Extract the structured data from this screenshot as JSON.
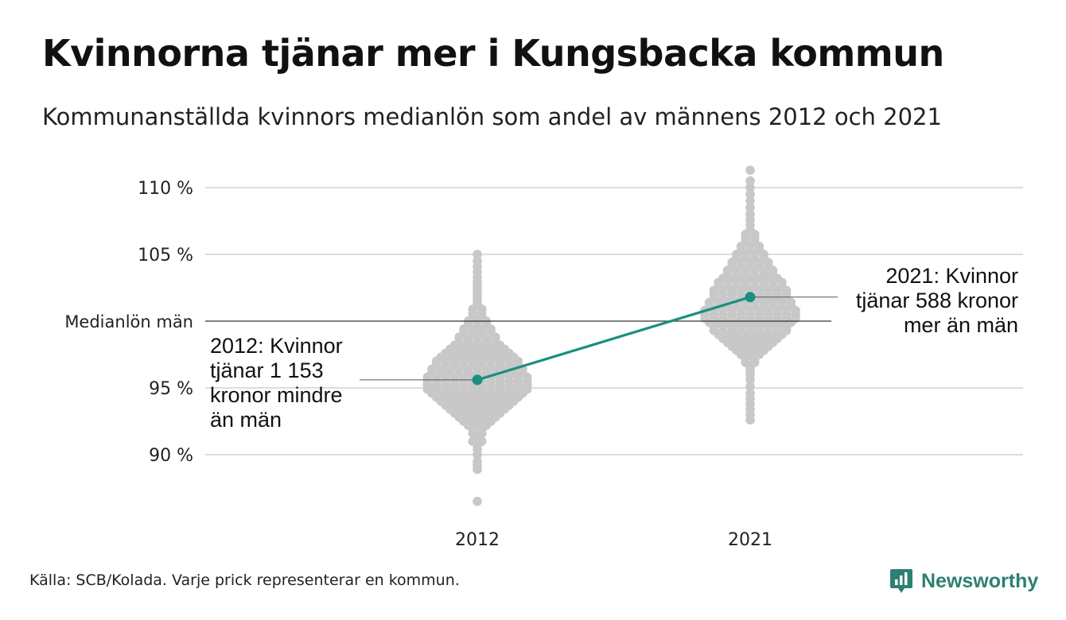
{
  "title": "Kvinnorna tjänar mer i Kungsbacka kommun",
  "subtitle": "Kommunanställda kvinnors medianlön som andel av männens 2012 och 2021",
  "source": "Källa: SCB/Kolada. Varje prick representerar en kommun.",
  "brand": {
    "name": "Newsworthy"
  },
  "chart_data": {
    "type": "scatter",
    "subtype": "beeswarm",
    "categories": [
      "2012",
      "2021"
    ],
    "y_ticks": [
      {
        "value": 90,
        "label": "90 %"
      },
      {
        "value": 95,
        "label": "95 %"
      },
      {
        "value": 100,
        "label": "Medianlön män"
      },
      {
        "value": 105,
        "label": "105 %"
      },
      {
        "value": 110,
        "label": "110 %"
      }
    ],
    "ylim": [
      85.5,
      112
    ],
    "reference_line": {
      "value": 100,
      "label": "Medianlön män"
    },
    "grid": true,
    "highlight": {
      "color": "#1a8f80",
      "points": [
        {
          "x": "2012",
          "y": 95.6
        },
        {
          "x": "2021",
          "y": 101.8
        }
      ]
    },
    "annotations": [
      {
        "x": "2012",
        "lines": [
          "2012: Kvinnor",
          "tjänar 1 153",
          "kronor mindre",
          "än män"
        ]
      },
      {
        "x": "2021",
        "lines": [
          "2021: Kvinnor",
          "tjänar 588 kronor",
          "mer än män"
        ]
      }
    ],
    "dot_color": "#c8c8c8",
    "series": [
      {
        "category": "2012",
        "values": [
          86.5,
          88.9,
          89.2,
          89.5,
          90.0,
          90.4,
          90.7,
          91.0,
          91.0,
          91.3,
          91.6,
          91.6,
          91.9,
          91.9,
          92.2,
          92.2,
          92.2,
          92.5,
          92.5,
          92.5,
          92.5,
          92.8,
          92.8,
          92.8,
          92.8,
          92.8,
          93.1,
          93.1,
          93.1,
          93.1,
          93.1,
          93.1,
          93.4,
          93.4,
          93.4,
          93.4,
          93.4,
          93.4,
          93.4,
          93.7,
          93.7,
          93.7,
          93.7,
          93.7,
          93.7,
          93.7,
          93.7,
          94.0,
          94.0,
          94.0,
          94.0,
          94.0,
          94.0,
          94.0,
          94.0,
          94.0,
          94.3,
          94.3,
          94.3,
          94.3,
          94.3,
          94.3,
          94.3,
          94.3,
          94.3,
          94.3,
          94.6,
          94.6,
          94.6,
          94.6,
          94.6,
          94.6,
          94.6,
          94.6,
          94.6,
          94.6,
          94.6,
          94.9,
          94.9,
          94.9,
          94.9,
          94.9,
          94.9,
          94.9,
          94.9,
          94.9,
          94.9,
          94.9,
          94.9,
          95.2,
          95.2,
          95.2,
          95.2,
          95.2,
          95.2,
          95.2,
          95.2,
          95.2,
          95.2,
          95.2,
          95.2,
          95.5,
          95.5,
          95.5,
          95.5,
          95.5,
          95.5,
          95.5,
          95.5,
          95.5,
          95.5,
          95.5,
          95.5,
          95.8,
          95.8,
          95.8,
          95.8,
          95.8,
          95.8,
          95.8,
          95.8,
          95.8,
          95.8,
          95.8,
          95.8,
          96.1,
          96.1,
          96.1,
          96.1,
          96.1,
          96.1,
          96.1,
          96.1,
          96.1,
          96.1,
          96.1,
          96.4,
          96.4,
          96.4,
          96.4,
          96.4,
          96.4,
          96.4,
          96.4,
          96.4,
          96.4,
          96.4,
          96.7,
          96.7,
          96.7,
          96.7,
          96.7,
          96.7,
          96.7,
          96.7,
          96.7,
          96.7,
          97.0,
          97.0,
          97.0,
          97.0,
          97.0,
          97.0,
          97.0,
          97.0,
          97.0,
          97.0,
          97.3,
          97.3,
          97.3,
          97.3,
          97.3,
          97.3,
          97.3,
          97.3,
          97.3,
          97.6,
          97.6,
          97.6,
          97.6,
          97.6,
          97.6,
          97.6,
          97.6,
          97.9,
          97.9,
          97.9,
          97.9,
          97.9,
          97.9,
          97.9,
          98.2,
          98.2,
          98.2,
          98.2,
          98.2,
          98.2,
          98.5,
          98.5,
          98.5,
          98.5,
          98.5,
          98.8,
          98.8,
          98.8,
          98.8,
          98.8,
          99.1,
          99.1,
          99.1,
          99.1,
          99.4,
          99.4,
          99.4,
          99.4,
          99.7,
          99.7,
          99.7,
          100.0,
          100.0,
          100.0,
          100.3,
          100.3,
          100.6,
          100.6,
          100.9,
          100.9,
          101.2,
          101.5,
          101.8,
          102.1,
          102.4,
          102.7,
          103.0,
          103.3,
          103.7,
          104.1,
          104.5,
          105.0
        ]
      },
      {
        "category": "2021",
        "values": [
          92.6,
          93.0,
          93.4,
          93.8,
          94.2,
          94.6,
          95.1,
          95.6,
          96.0,
          96.3,
          96.6,
          96.9,
          96.9,
          97.2,
          97.2,
          97.5,
          97.5,
          97.5,
          97.8,
          97.8,
          97.8,
          97.8,
          98.1,
          98.1,
          98.1,
          98.1,
          98.1,
          98.4,
          98.4,
          98.4,
          98.4,
          98.4,
          98.4,
          98.7,
          98.7,
          98.7,
          98.7,
          98.7,
          98.7,
          98.7,
          99.0,
          99.0,
          99.0,
          99.0,
          99.0,
          99.0,
          99.0,
          99.0,
          99.3,
          99.3,
          99.3,
          99.3,
          99.3,
          99.3,
          99.3,
          99.3,
          99.3,
          99.6,
          99.6,
          99.6,
          99.6,
          99.6,
          99.6,
          99.6,
          99.6,
          99.6,
          99.9,
          99.9,
          99.9,
          99.9,
          99.9,
          99.9,
          99.9,
          99.9,
          99.9,
          99.9,
          100.2,
          100.2,
          100.2,
          100.2,
          100.2,
          100.2,
          100.2,
          100.2,
          100.2,
          100.2,
          100.2,
          100.5,
          100.5,
          100.5,
          100.5,
          100.5,
          100.5,
          100.5,
          100.5,
          100.5,
          100.5,
          100.5,
          100.8,
          100.8,
          100.8,
          100.8,
          100.8,
          100.8,
          100.8,
          100.8,
          100.8,
          100.8,
          100.8,
          101.1,
          101.1,
          101.1,
          101.1,
          101.1,
          101.1,
          101.1,
          101.1,
          101.1,
          101.1,
          101.4,
          101.4,
          101.4,
          101.4,
          101.4,
          101.4,
          101.4,
          101.4,
          101.4,
          101.4,
          101.7,
          101.7,
          101.7,
          101.7,
          101.7,
          101.7,
          101.7,
          101.7,
          101.7,
          102.0,
          102.0,
          102.0,
          102.0,
          102.0,
          102.0,
          102.0,
          102.0,
          102.0,
          102.3,
          102.3,
          102.3,
          102.3,
          102.3,
          102.3,
          102.3,
          102.3,
          102.3,
          102.6,
          102.6,
          102.6,
          102.6,
          102.6,
          102.6,
          102.6,
          102.6,
          102.9,
          102.9,
          102.9,
          102.9,
          102.9,
          102.9,
          102.9,
          102.9,
          103.2,
          103.2,
          103.2,
          103.2,
          103.2,
          103.2,
          103.2,
          103.5,
          103.5,
          103.5,
          103.5,
          103.5,
          103.5,
          103.8,
          103.8,
          103.8,
          103.8,
          103.8,
          103.8,
          104.1,
          104.1,
          104.1,
          104.1,
          104.1,
          104.4,
          104.4,
          104.4,
          104.4,
          104.4,
          104.7,
          104.7,
          104.7,
          104.7,
          105.0,
          105.0,
          105.0,
          105.0,
          105.3,
          105.3,
          105.3,
          105.6,
          105.6,
          105.6,
          105.9,
          105.9,
          106.2,
          106.2,
          106.5,
          106.5,
          106.8,
          107.2,
          107.6,
          108.0,
          108.5,
          109.0,
          109.5,
          110.0,
          110.5,
          111.3
        ]
      }
    ]
  }
}
